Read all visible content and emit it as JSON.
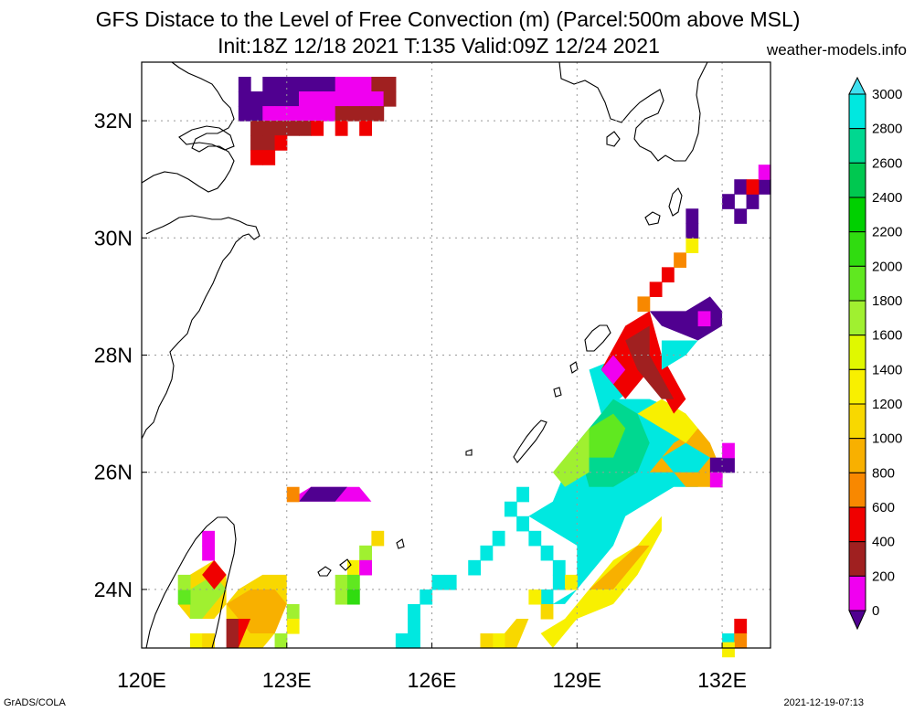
{
  "title_line1": "GFS Distace to the Level of Free Convection (m) (Parcel:500m above MSL)",
  "title_line2": "Init:18Z 12/18 2021 T:135 Valid:09Z 12/24 2021",
  "site": "weather-models.info",
  "footer_left": "GrADS/COLA",
  "footer_right": "2021-12-19-07:13",
  "lon_labels": [
    "120E",
    "123E",
    "126E",
    "129E",
    "132E"
  ],
  "lat_labels": [
    "32N",
    "30N",
    "28N",
    "26N",
    "24N"
  ],
  "colorbar": {
    "labels": [
      "3000",
      "2800",
      "2600",
      "2400",
      "2200",
      "2000",
      "1800",
      "1600",
      "1400",
      "1200",
      "1000",
      "800",
      "600",
      "400",
      "200",
      "0"
    ],
    "colors": [
      "#00e8e0",
      "#00d890",
      "#00c850",
      "#00d000",
      "#30dc10",
      "#60e820",
      "#a0f030",
      "#e0f800",
      "#f8f000",
      "#f8d800",
      "#f8b000",
      "#f88800",
      "#f00000",
      "#a02020",
      "#f000f0",
      "#500090"
    ]
  },
  "map_extent": {
    "lon_min": 120,
    "lon_max": 133,
    "lat_min": 23,
    "lat_max": 33
  },
  "field_cells": [
    {
      "lon": [
        122.0,
        122.5,
        122.75,
        123.0,
        123.25,
        123.5,
        123.75,
        124.0,
        124.25,
        124.5,
        124.75,
        125.0
      ],
      "lat": 32.5,
      "cls": [
        "darkpurple",
        "darkpurple",
        "darkpurple",
        "darkpurple",
        "darkpurple",
        "darkpurple",
        "darkpurple",
        "magenta",
        "magenta",
        "magenta",
        "darkred",
        "darkred"
      ]
    },
    {
      "lon": [
        122.0,
        122.25,
        122.5,
        122.75,
        123.0,
        123.25,
        123.5,
        123.75,
        124.0,
        124.25,
        124.5,
        124.75,
        125.0
      ],
      "lat": 32.25,
      "cls": [
        "darkpurple",
        "darkpurple",
        "darkpurple",
        "darkpurple",
        "darkpurple",
        "magenta",
        "magenta",
        "magenta",
        "magenta",
        "magenta",
        "magenta",
        "magenta",
        "darkred"
      ]
    },
    {
      "lon": [
        122.0,
        122.25,
        122.5,
        122.75,
        123.0,
        123.25,
        123.5,
        123.75,
        124.0,
        124.25,
        124.5,
        124.75
      ],
      "lat": 32.0,
      "cls": [
        "darkpurple",
        "darkpurple",
        "magenta",
        "magenta",
        "magenta",
        "magenta",
        "magenta",
        "magenta",
        "darkred",
        "darkred",
        "darkred",
        "darkred"
      ]
    },
    {
      "lon": [
        122.25,
        122.5,
        122.75,
        123.0,
        123.25,
        123.5,
        124.0,
        124.5
      ],
      "lat": 31.75,
      "cls": [
        "darkred",
        "darkred",
        "darkred",
        "darkred",
        "darkred",
        "red",
        "red",
        "red"
      ]
    },
    {
      "lon": [
        122.25,
        122.5,
        122.75
      ],
      "lat": 31.5,
      "cls": [
        "darkred",
        "darkred",
        "red"
      ]
    },
    {
      "lon": [
        122.25,
        122.5
      ],
      "lat": 31.25,
      "cls": [
        "red",
        "red"
      ]
    }
  ]
}
